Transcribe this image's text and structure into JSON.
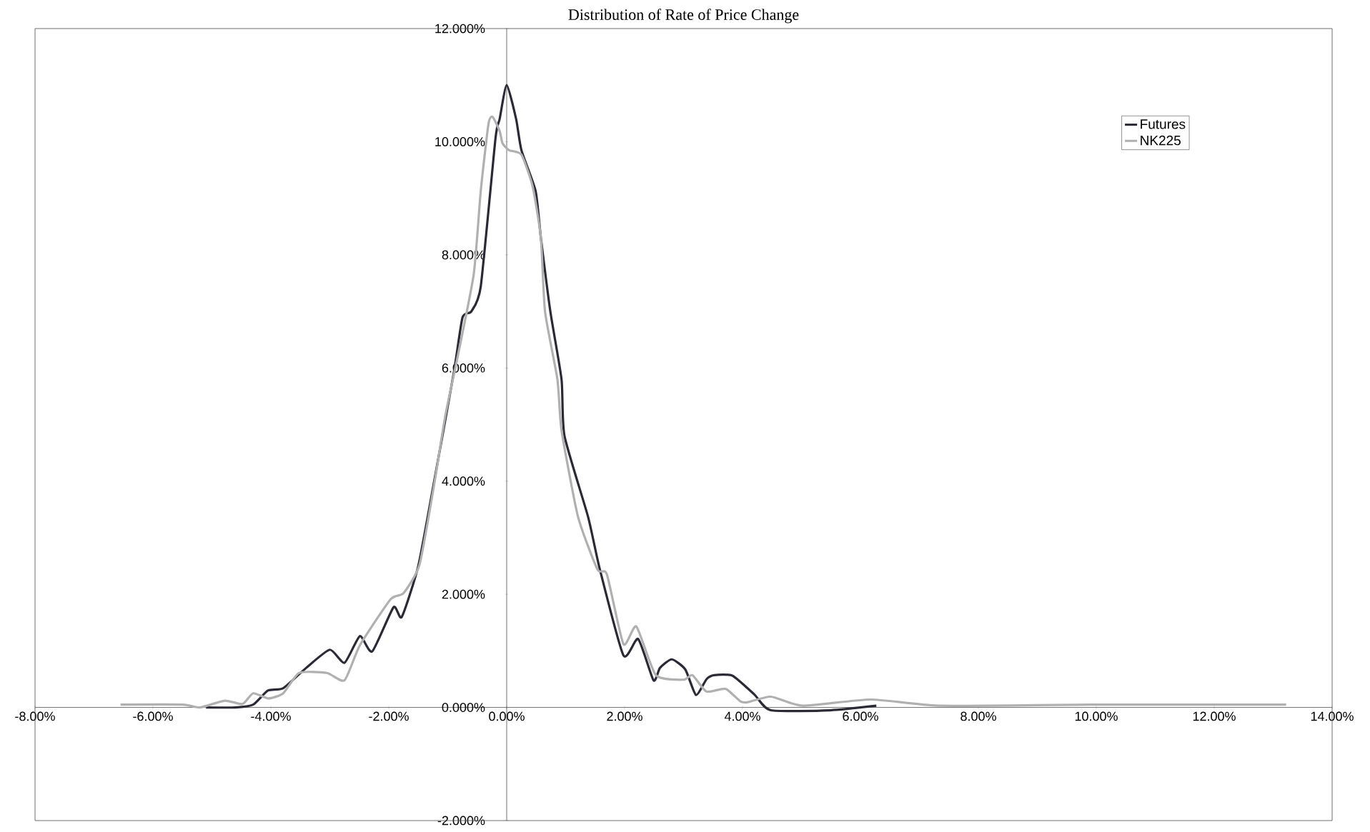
{
  "chart_data": {
    "type": "line",
    "title": "Distribution of Rate of Price Change",
    "xlim": [
      -8,
      14
    ],
    "xticks": [
      {
        "value": -8,
        "label": "-8.00%"
      },
      {
        "value": -6,
        "label": "-6.00%"
      },
      {
        "value": -4,
        "label": "-4.00%"
      },
      {
        "value": -2,
        "label": "-2.00%"
      },
      {
        "value": 0,
        "label": "0.00%"
      },
      {
        "value": 2,
        "label": "2.00%"
      },
      {
        "value": 4,
        "label": "4.00%"
      },
      {
        "value": 6,
        "label": "6.00%"
      },
      {
        "value": 8,
        "label": "8.00%"
      },
      {
        "value": 10,
        "label": "10.00%"
      },
      {
        "value": 12,
        "label": "12.00%"
      },
      {
        "value": 14,
        "label": "14.00%"
      }
    ],
    "ylim": [
      -2,
      12
    ],
    "yticks": [
      {
        "value": -2,
        "label": "-2.000%"
      },
      {
        "value": 0,
        "label": "0.000%"
      },
      {
        "value": 2,
        "label": "2.000%"
      },
      {
        "value": 4,
        "label": "4.000%"
      },
      {
        "value": 6,
        "label": "6.000%"
      },
      {
        "value": 8,
        "label": "8.000%"
      },
      {
        "value": 10,
        "label": "10.000%"
      },
      {
        "value": 12,
        "label": "12.000%"
      }
    ],
    "grid": false,
    "legend": "top right",
    "marker": "none",
    "line_style": "solid",
    "series": [
      {
        "name": "Futures",
        "color": "#2a2a35",
        "x": [
          -5.1,
          -4.6,
          -4.3,
          -4.05,
          -3.79,
          -3.4,
          -3.0,
          -2.75,
          -2.49,
          -2.28,
          -1.92,
          -1.78,
          -1.5,
          -1.23,
          -0.9,
          -0.75,
          -0.6,
          -0.44,
          -0.19,
          -0.12,
          0.0,
          0.16,
          0.25,
          0.49,
          0.58,
          0.74,
          0.93,
          0.98,
          1.38,
          1.58,
          1.98,
          2.23,
          2.49,
          2.6,
          2.8,
          3.03,
          3.21,
          3.39,
          3.52,
          3.83,
          4.2,
          4.48,
          5.49,
          6.27
        ],
        "values": [
          0.0,
          0.0,
          0.05,
          0.3,
          0.34,
          0.7,
          1.02,
          0.79,
          1.26,
          0.99,
          1.77,
          1.6,
          2.5,
          4.0,
          5.9,
          6.89,
          7.0,
          7.44,
          10.06,
          10.4,
          11.0,
          10.4,
          9.85,
          9.13,
          8.3,
          7.0,
          5.8,
          4.8,
          3.37,
          2.44,
          0.92,
          1.21,
          0.48,
          0.7,
          0.85,
          0.67,
          0.22,
          0.5,
          0.57,
          0.56,
          0.23,
          -0.05,
          -0.05,
          0.03
        ]
      },
      {
        "name": "NK225",
        "color": "#b0b0b0",
        "x": [
          -6.55,
          -5.5,
          -5.2,
          -4.78,
          -4.48,
          -4.3,
          -4.04,
          -3.79,
          -3.52,
          -3.05,
          -2.75,
          -2.49,
          -1.97,
          -1.75,
          -1.48,
          -1.24,
          -1.04,
          -0.84,
          -0.56,
          -0.44,
          -0.31,
          -0.24,
          -0.12,
          -0.07,
          0.04,
          0.25,
          0.44,
          0.58,
          0.65,
          0.86,
          0.93,
          1.21,
          1.54,
          1.7,
          1.98,
          2.2,
          2.53,
          3.0,
          3.15,
          3.39,
          3.71,
          3.96,
          4.08,
          4.48,
          5.02,
          6.17,
          7.37,
          10.0,
          13.22
        ],
        "values": [
          0.05,
          0.05,
          0.0,
          0.12,
          0.06,
          0.25,
          0.16,
          0.25,
          0.61,
          0.61,
          0.48,
          1.1,
          1.91,
          2.02,
          2.52,
          3.88,
          5.16,
          6.16,
          7.65,
          9.13,
          10.31,
          10.44,
          10.19,
          9.97,
          9.85,
          9.77,
          9.21,
          8.3,
          7.0,
          5.8,
          4.9,
          3.37,
          2.44,
          2.35,
          1.12,
          1.43,
          0.57,
          0.49,
          0.57,
          0.28,
          0.33,
          0.11,
          0.09,
          0.19,
          0.03,
          0.14,
          0.03,
          0.05,
          0.05
        ]
      }
    ]
  }
}
